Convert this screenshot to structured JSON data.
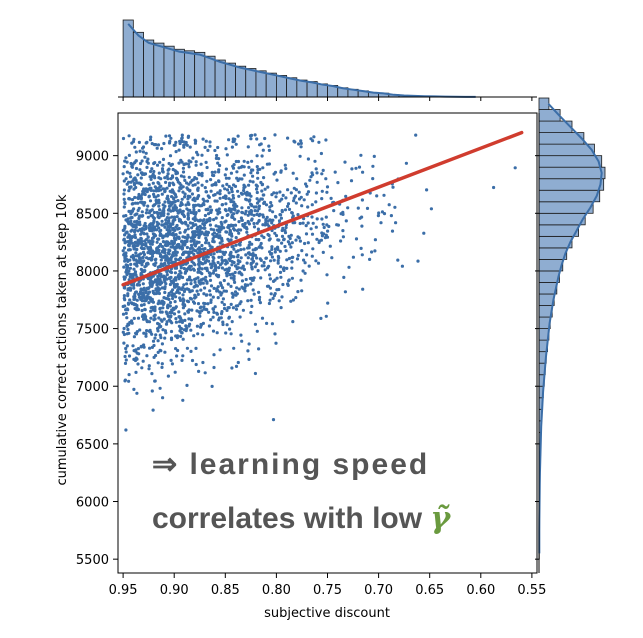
{
  "chart_data": {
    "type": "scatter",
    "xlabel": "subjective discount",
    "ylabel": "cumulative correct actions taken at step 10k",
    "xlim": [
      0.955,
      0.545
    ],
    "ylim": [
      5380,
      9370
    ],
    "x_inverted": true,
    "x_ticks": [
      0.95,
      0.9,
      0.85,
      0.8,
      0.75,
      0.7,
      0.65,
      0.6,
      0.55
    ],
    "x_tick_labels": [
      "0.95",
      "0.90",
      "0.85",
      "0.80",
      "0.75",
      "0.70",
      "0.65",
      "0.60",
      "0.55"
    ],
    "y_ticks": [
      5500,
      6000,
      6500,
      7000,
      7500,
      8000,
      8500,
      9000
    ],
    "y_tick_labels": [
      "5500",
      "6000",
      "6500",
      "7000",
      "7500",
      "8000",
      "8500",
      "9000"
    ],
    "grid": false,
    "point_color": "#3b6ea8",
    "regression_line": {
      "color": "#d03c2e",
      "x": [
        0.95,
        0.56
      ],
      "y": [
        7880,
        9200
      ]
    },
    "marginal_x": {
      "type": "histogram",
      "bin_start": 0.95,
      "bin_width": -0.01,
      "counts": [
        1.0,
        0.84,
        0.74,
        0.7,
        0.66,
        0.62,
        0.6,
        0.58,
        0.53,
        0.48,
        0.44,
        0.4,
        0.37,
        0.34,
        0.31,
        0.28,
        0.25,
        0.22,
        0.2,
        0.17,
        0.15,
        0.12,
        0.1,
        0.08,
        0.06,
        0.05,
        0.03,
        0.02,
        0.015,
        0.01,
        0.008,
        0.005,
        0.003,
        0.002,
        0.001
      ],
      "color": "#8fadd1",
      "kde_color": "#3b6ea8"
    },
    "marginal_y": {
      "type": "histogram",
      "bin_start": 5500,
      "bin_width": 100,
      "counts": [
        0.005,
        0.005,
        0.005,
        0.006,
        0.008,
        0.01,
        0.012,
        0.015,
        0.02,
        0.025,
        0.03,
        0.035,
        0.045,
        0.055,
        0.065,
        0.08,
        0.095,
        0.11,
        0.13,
        0.15,
        0.17,
        0.2,
        0.23,
        0.27,
        0.31,
        0.36,
        0.42,
        0.5,
        0.6,
        0.7,
        0.82,
        0.92,
        0.98,
        1.0,
        0.95,
        0.84,
        0.68,
        0.5,
        0.32,
        0.15
      ],
      "color": "#8fadd1",
      "kde_color": "#3b6ea8"
    }
  },
  "annotation": {
    "line1": "⇒ learning speed",
    "line2": "correlates with low ",
    "symbol": "γ̃",
    "colors": {
      "text": "#555555",
      "symbol": "#6a9a3f"
    }
  }
}
